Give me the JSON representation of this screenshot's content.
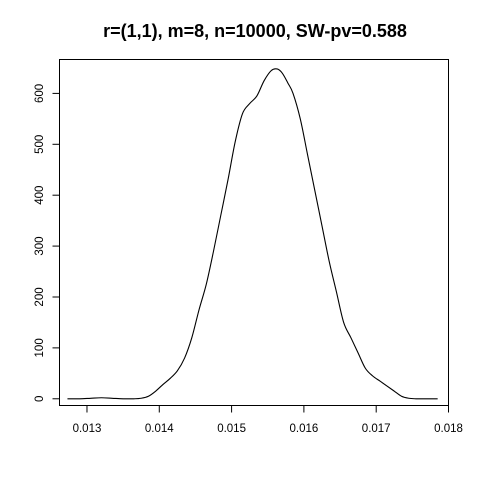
{
  "chart_data": {
    "type": "line",
    "title": "r=(1,1), m=8, n=10000, SW-pv=0.588",
    "xlabel": "",
    "ylabel": "",
    "xlim": [
      0.01262,
      0.018
    ],
    "ylim": [
      0,
      660
    ],
    "x_ticks": [
      0.013,
      0.014,
      0.015,
      0.016,
      0.017,
      0.018
    ],
    "x_tick_labels": [
      "0.013",
      "0.014",
      "0.015",
      "0.016",
      "0.017",
      "0.018"
    ],
    "y_ticks": [
      0,
      100,
      200,
      300,
      400,
      500,
      600
    ],
    "y_tick_labels": [
      "0",
      "100",
      "200",
      "300",
      "400",
      "500",
      "600"
    ],
    "grid": false,
    "series": [
      {
        "x": [
          0.01273,
          0.0129,
          0.01305,
          0.0132,
          0.01335,
          0.0135,
          0.01365,
          0.01375,
          0.01385,
          0.01395,
          0.01405,
          0.01415,
          0.01425,
          0.01435,
          0.01445,
          0.01455,
          0.01465,
          0.01475,
          0.01485,
          0.01495,
          0.01505,
          0.01515,
          0.01525,
          0.01535,
          0.01545,
          0.01555,
          0.01563,
          0.0157,
          0.01578,
          0.01585,
          0.01595,
          0.01605,
          0.01615,
          0.01625,
          0.01635,
          0.01645,
          0.01655,
          0.01665,
          0.01675,
          0.01685,
          0.01695,
          0.01705,
          0.01715,
          0.01725,
          0.01735,
          0.01745,
          0.01755,
          0.01765,
          0.01775,
          0.01785
        ],
        "y": [
          0,
          0,
          1,
          2,
          1,
          0,
          0,
          1,
          5,
          15,
          28,
          40,
          55,
          80,
          120,
          175,
          225,
          290,
          360,
          430,
          505,
          560,
          580,
          595,
          625,
          645,
          648,
          640,
          620,
          600,
          550,
          480,
          410,
          340,
          270,
          210,
          150,
          120,
          90,
          60,
          45,
          35,
          25,
          15,
          5,
          1,
          0,
          0,
          0,
          0
        ]
      }
    ]
  }
}
